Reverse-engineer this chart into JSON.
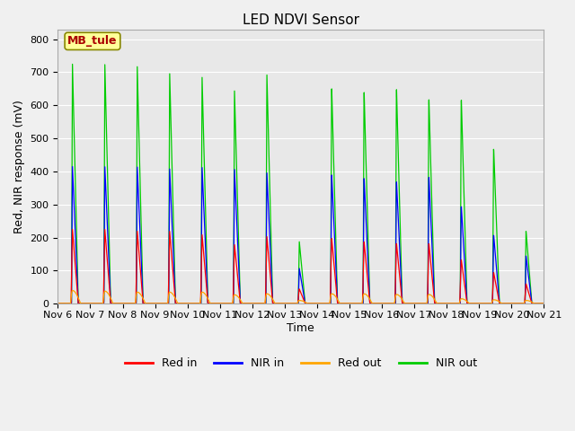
{
  "title": "LED NDVI Sensor",
  "ylabel": "Red, NIR response (mV)",
  "xlabel": "Time",
  "annotation": "MB_tule",
  "ylim": [
    0,
    830
  ],
  "x_tick_labels": [
    "Nov 6",
    "Nov 7",
    "Nov 8",
    "Nov 9",
    "Nov 10",
    "Nov 11",
    "Nov 12",
    "Nov 13",
    "Nov 14",
    "Nov 15",
    "Nov 16",
    "Nov 17",
    "Nov 18",
    "Nov 19",
    "Nov 20",
    "Nov 21"
  ],
  "legend_labels": [
    "Red in",
    "NIR in",
    "Red out",
    "NIR out"
  ],
  "legend_colors": [
    "#ff0000",
    "#0000ff",
    "#ffa500",
    "#00cc00"
  ],
  "line_colors": {
    "red_in": "#ff0000",
    "nir_in": "#0000ff",
    "red_out": "#ffa500",
    "nir_out": "#00cc00"
  },
  "background_color": "#f0f0f0",
  "plot_bg_color": "#e8e8e8",
  "annotation_bg": "#ffff99",
  "annotation_fg": "#aa0000",
  "title_fontsize": 11,
  "axis_fontsize": 9,
  "tick_fontsize": 8,
  "legend_fontsize": 9,
  "day_centers": [
    0.45,
    1.45,
    2.45,
    3.45,
    4.45,
    5.45,
    6.45,
    7.45,
    8.45,
    9.45,
    10.45,
    11.45,
    12.45,
    13.45,
    14.45
  ],
  "nir_out_peaks": [
    725,
    725,
    720,
    700,
    690,
    650,
    700,
    190,
    660,
    650,
    660,
    630,
    630,
    475,
    220
  ],
  "nir_in_peaks": [
    415,
    415,
    415,
    410,
    415,
    410,
    400,
    108,
    395,
    385,
    375,
    390,
    300,
    210,
    145
  ],
  "red_in_peaks": [
    225,
    225,
    220,
    220,
    210,
    180,
    205,
    45,
    200,
    190,
    185,
    185,
    135,
    95,
    60
  ],
  "red_out_peaks": [
    40,
    38,
    35,
    35,
    35,
    27,
    30,
    10,
    30,
    30,
    28,
    28,
    15,
    12,
    10
  ],
  "spike_rise": 0.03,
  "spike_fall": 0.18,
  "orange_rise": 0.06,
  "orange_fall": 0.25
}
